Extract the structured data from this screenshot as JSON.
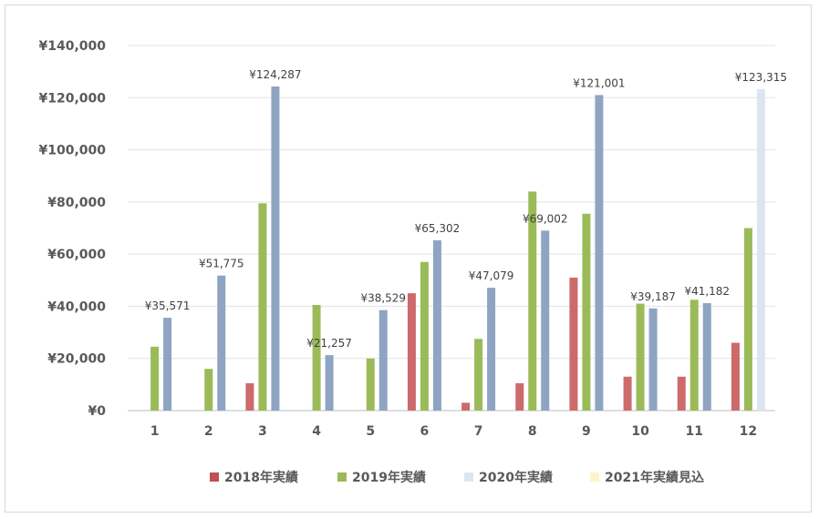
{
  "chart_data": {
    "type": "bar",
    "categories": [
      "1",
      "2",
      "3",
      "4",
      "5",
      "6",
      "7",
      "8",
      "9",
      "10",
      "11",
      "12"
    ],
    "series": [
      {
        "name": "2018年実績",
        "color": "#cd6a6b",
        "values": [
          0,
          0,
          10500,
          0,
          0,
          45000,
          3000,
          10500,
          51000,
          13000,
          13000,
          26000
        ]
      },
      {
        "name": "2019年実績",
        "color": "#9bbb59",
        "values": [
          24500,
          16000,
          79500,
          40500,
          20000,
          57000,
          27500,
          84000,
          75500,
          41000,
          42500,
          70000
        ]
      },
      {
        "name": "2020年実績",
        "color": "#8ea4c2",
        "values": [
          35571,
          51775,
          124287,
          21257,
          38529,
          65302,
          47079,
          69002,
          121001,
          39187,
          41182,
          123315
        ],
        "point_colors": {
          "11": "#dce6f2"
        }
      },
      {
        "name": "2021年実績見込",
        "color": "#fff2b3",
        "values": [
          0,
          0,
          0,
          0,
          0,
          0,
          0,
          0,
          0,
          0,
          0,
          0
        ]
      }
    ],
    "legend_swatch_colors": [
      "#c0504d",
      "#9bbb59",
      "#dce6f2",
      "#fff2cc"
    ],
    "data_labels": [
      "¥35,571",
      "¥51,775",
      "¥124,287",
      "¥21,257",
      "¥38,529",
      "¥65,302",
      "¥47,079",
      "¥69,002",
      "¥121,001",
      "¥39,187",
      "¥41,182",
      "¥123,315"
    ],
    "y_ticks": [
      "¥0",
      "¥20,000",
      "¥40,000",
      "¥60,000",
      "¥80,000",
      "¥100,000",
      "¥120,000",
      "¥140,000"
    ],
    "ylim": [
      0,
      140000
    ],
    "grid": true,
    "legend_position": "bottom",
    "title": "",
    "xlabel": "",
    "ylabel": ""
  }
}
